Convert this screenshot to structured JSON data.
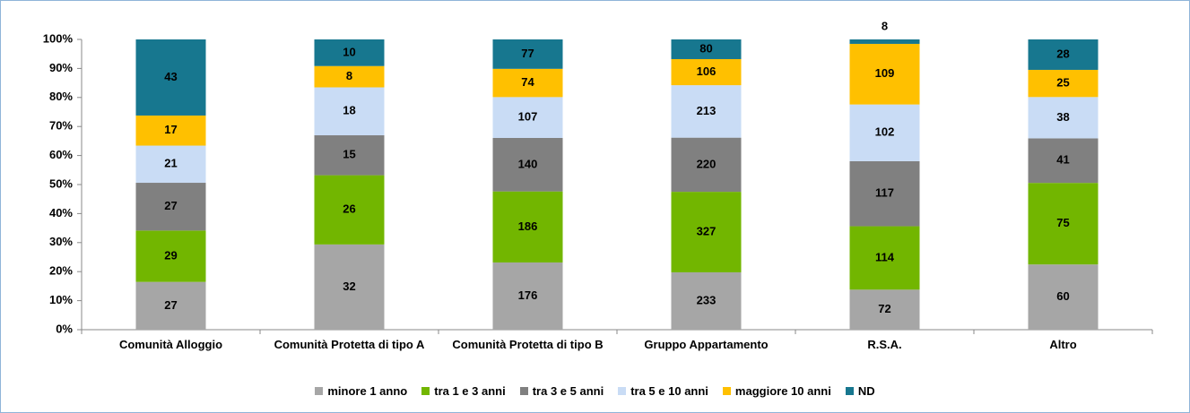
{
  "chart_data": {
    "type": "bar",
    "stacking": "percent",
    "categories": [
      "Comunità Alloggio",
      "Comunità Protetta di tipo A",
      "Comunità Protetta di tipo B",
      "Gruppo Appartamento",
      "R.S.A.",
      "Altro"
    ],
    "series": [
      {
        "name": "minore 1 anno",
        "color": "#a6a6a6",
        "values": [
          27,
          32,
          176,
          233,
          72,
          60
        ]
      },
      {
        "name": "tra 1 e 3 anni",
        "color": "#72b600",
        "values": [
          29,
          26,
          186,
          327,
          114,
          75
        ]
      },
      {
        "name": "tra 3 e 5 anni",
        "color": "#808080",
        "values": [
          27,
          15,
          140,
          220,
          117,
          41
        ]
      },
      {
        "name": "tra 5 e 10 anni",
        "color": "#c9dcf5",
        "values": [
          21,
          18,
          107,
          213,
          102,
          38
        ]
      },
      {
        "name": "maggiore 10 anni",
        "color": "#ffc000",
        "values": [
          17,
          8,
          74,
          106,
          109,
          25
        ]
      },
      {
        "name": "ND",
        "color": "#17778f",
        "values": [
          43,
          10,
          77,
          80,
          8,
          28
        ]
      }
    ],
    "ylim": [
      0,
      100
    ],
    "yticks": [
      {
        "value": 0,
        "label": "0%"
      },
      {
        "value": 10,
        "label": "10%"
      },
      {
        "value": 20,
        "label": "20%"
      },
      {
        "value": 30,
        "label": "30%"
      },
      {
        "value": 40,
        "label": "40%"
      },
      {
        "value": 50,
        "label": "50%"
      },
      {
        "value": 60,
        "label": "60%"
      },
      {
        "value": 70,
        "label": "70%"
      },
      {
        "value": 80,
        "label": "80%"
      },
      {
        "value": 90,
        "label": "90%"
      },
      {
        "value": 100,
        "label": "100%"
      }
    ],
    "legend": "bottom"
  }
}
